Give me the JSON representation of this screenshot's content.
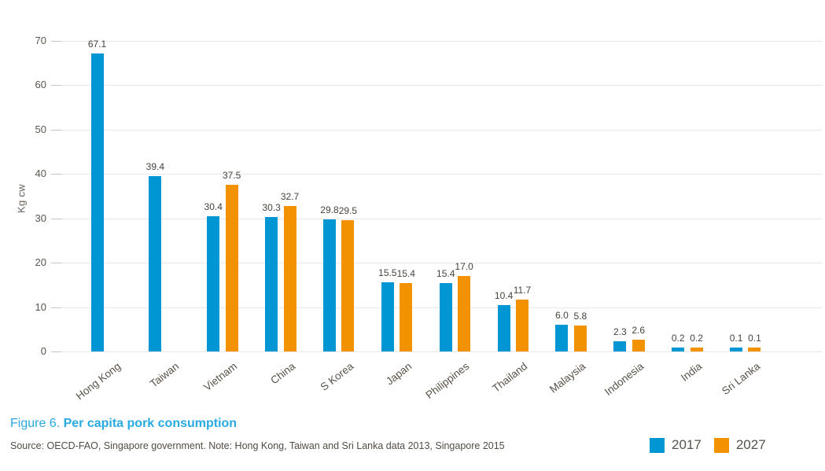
{
  "chart_data": {
    "type": "bar",
    "title": "Figure 6. Per capita pork consumption",
    "xlabel": "",
    "ylabel": "Kg cw",
    "ylim": [
      0,
      70
    ],
    "yticks": [
      0,
      10,
      20,
      30,
      40,
      50,
      60,
      70
    ],
    "grid": true,
    "legend_position": "bottom-right",
    "categories": [
      "Hong Kong",
      "Taiwan",
      "Vietnam",
      "China",
      "S Korea",
      "Japan",
      "Philippines",
      "Thailand",
      "Malaysia",
      "Indonesia",
      "India",
      "Sri Lanka"
    ],
    "series": [
      {
        "name": "2017",
        "color": "#0095d3",
        "values": [
          67.1,
          39.4,
          30.4,
          30.3,
          29.8,
          15.5,
          15.4,
          10.4,
          6.0,
          2.3,
          0.2,
          0.1
        ]
      },
      {
        "name": "2027",
        "color": "#f39200",
        "values": [
          null,
          null,
          37.5,
          32.7,
          29.5,
          15.4,
          17.0,
          11.7,
          5.8,
          2.6,
          0.2,
          0.1
        ]
      }
    ]
  },
  "caption": {
    "figure_label": "Figure 6.",
    "title_text": "Per capita pork consumption"
  },
  "source_note": "Source: OECD-FAO, Singapore government. Note: Hong Kong, Taiwan and Sri Lanka data 2013, Singapore 2015",
  "y_axis_title": "Kg cw",
  "legend": {
    "items": [
      {
        "label": "2017",
        "color": "#0095d3"
      },
      {
        "label": "2027",
        "color": "#f39200"
      }
    ]
  },
  "colors": {
    "series_2017": "#0095d3",
    "series_2027": "#f39200",
    "caption_blue": "#29a9e1",
    "gridline": "#e8e8e8",
    "axis_text": "#5b554d"
  }
}
